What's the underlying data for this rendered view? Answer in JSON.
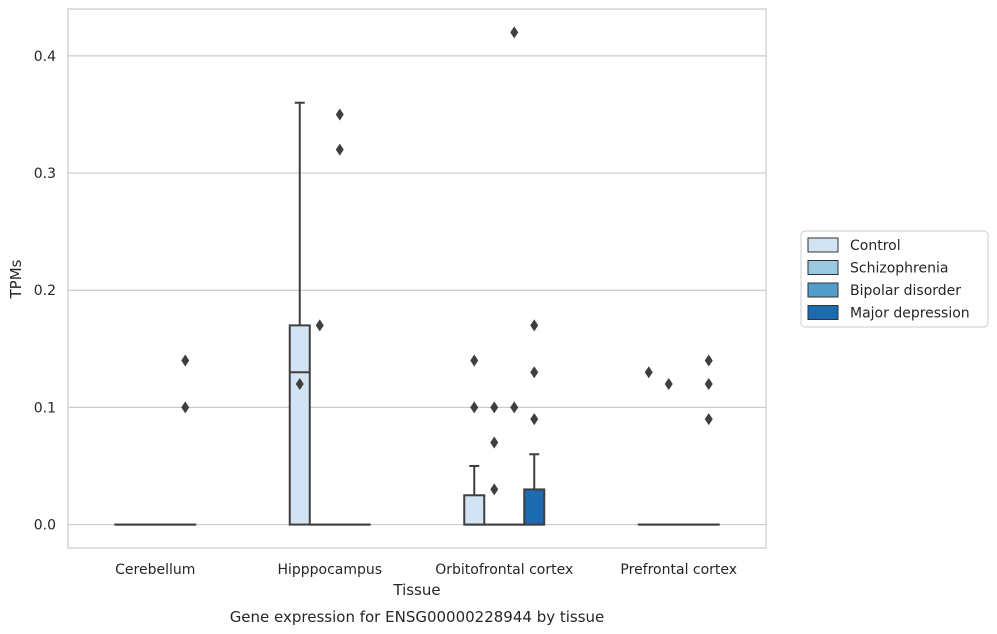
{
  "chart_data": {
    "type": "box",
    "xlabel": "Tissue",
    "ylabel": "TPMs",
    "caption": "Gene expression for ENSG00000228944 by tissue",
    "ylim": [
      -0.02,
      0.44
    ],
    "yticks": [
      0.0,
      0.1,
      0.2,
      0.3,
      0.4
    ],
    "ytick_labels": [
      "0.0",
      "0.1",
      "0.2",
      "0.3",
      "0.4"
    ],
    "grid": true,
    "legend_placement": "right",
    "categories": [
      "Cerebellum",
      "Hipppocampus",
      "Orbitofrontal cortex",
      "Prefrontal cortex"
    ],
    "series": [
      {
        "name": "Control",
        "color": "#d2e3f3",
        "boxes": [
          {
            "q1": 0,
            "median": 0,
            "q3": 0,
            "whislo": 0,
            "whishi": 0,
            "fliers": []
          },
          {
            "q1": 0,
            "median": 0.13,
            "q3": 0.17,
            "whislo": 0,
            "whishi": 0.36,
            "fliers": [
              0.12
            ]
          },
          {
            "q1": 0,
            "median": 0,
            "q3": 0.025,
            "whislo": 0,
            "whishi": 0.05,
            "fliers": [
              0.14,
              0.1
            ]
          },
          {
            "q1": 0,
            "median": 0,
            "q3": 0,
            "whislo": 0,
            "whishi": 0,
            "fliers": [
              0.13
            ]
          }
        ]
      },
      {
        "name": "Schizophrenia",
        "color": "#9ac8e0",
        "boxes": [
          {
            "q1": 0,
            "median": 0,
            "q3": 0,
            "whislo": 0,
            "whishi": 0,
            "fliers": []
          },
          {
            "q1": 0,
            "median": 0,
            "q3": 0,
            "whislo": 0,
            "whishi": 0,
            "fliers": [
              0.17
            ]
          },
          {
            "q1": 0,
            "median": 0,
            "q3": 0,
            "whislo": 0,
            "whishi": 0,
            "fliers": [
              0.1,
              0.07,
              0.03
            ]
          },
          {
            "q1": 0,
            "median": 0,
            "q3": 0,
            "whislo": 0,
            "whishi": 0,
            "fliers": [
              0.12
            ]
          }
        ]
      },
      {
        "name": "Bipolar disorder",
        "color": "#529dcc",
        "boxes": [
          {
            "q1": 0,
            "median": 0,
            "q3": 0,
            "whislo": 0,
            "whishi": 0,
            "fliers": []
          },
          {
            "q1": 0,
            "median": 0,
            "q3": 0,
            "whislo": 0,
            "whishi": 0,
            "fliers": [
              0.35,
              0.32
            ]
          },
          {
            "q1": 0,
            "median": 0,
            "q3": 0,
            "whislo": 0,
            "whishi": 0,
            "fliers": [
              0.42,
              0.1
            ]
          },
          {
            "q1": 0,
            "median": 0,
            "q3": 0,
            "whislo": 0,
            "whishi": 0,
            "fliers": []
          }
        ]
      },
      {
        "name": "Major depression",
        "color": "#1c6aaf",
        "boxes": [
          {
            "q1": 0,
            "median": 0,
            "q3": 0,
            "whislo": 0,
            "whishi": 0,
            "fliers": [
              0.14,
              0.1
            ]
          },
          {
            "q1": 0,
            "median": 0,
            "q3": 0,
            "whislo": 0,
            "whishi": 0,
            "fliers": []
          },
          {
            "q1": 0,
            "median": 0,
            "q3": 0.03,
            "whislo": 0,
            "whishi": 0.06,
            "fliers": [
              0.17,
              0.13,
              0.09
            ]
          },
          {
            "q1": 0,
            "median": 0,
            "q3": 0,
            "whislo": 0,
            "whishi": 0,
            "fliers": [
              0.14,
              0.12,
              0.09
            ]
          }
        ]
      }
    ]
  }
}
